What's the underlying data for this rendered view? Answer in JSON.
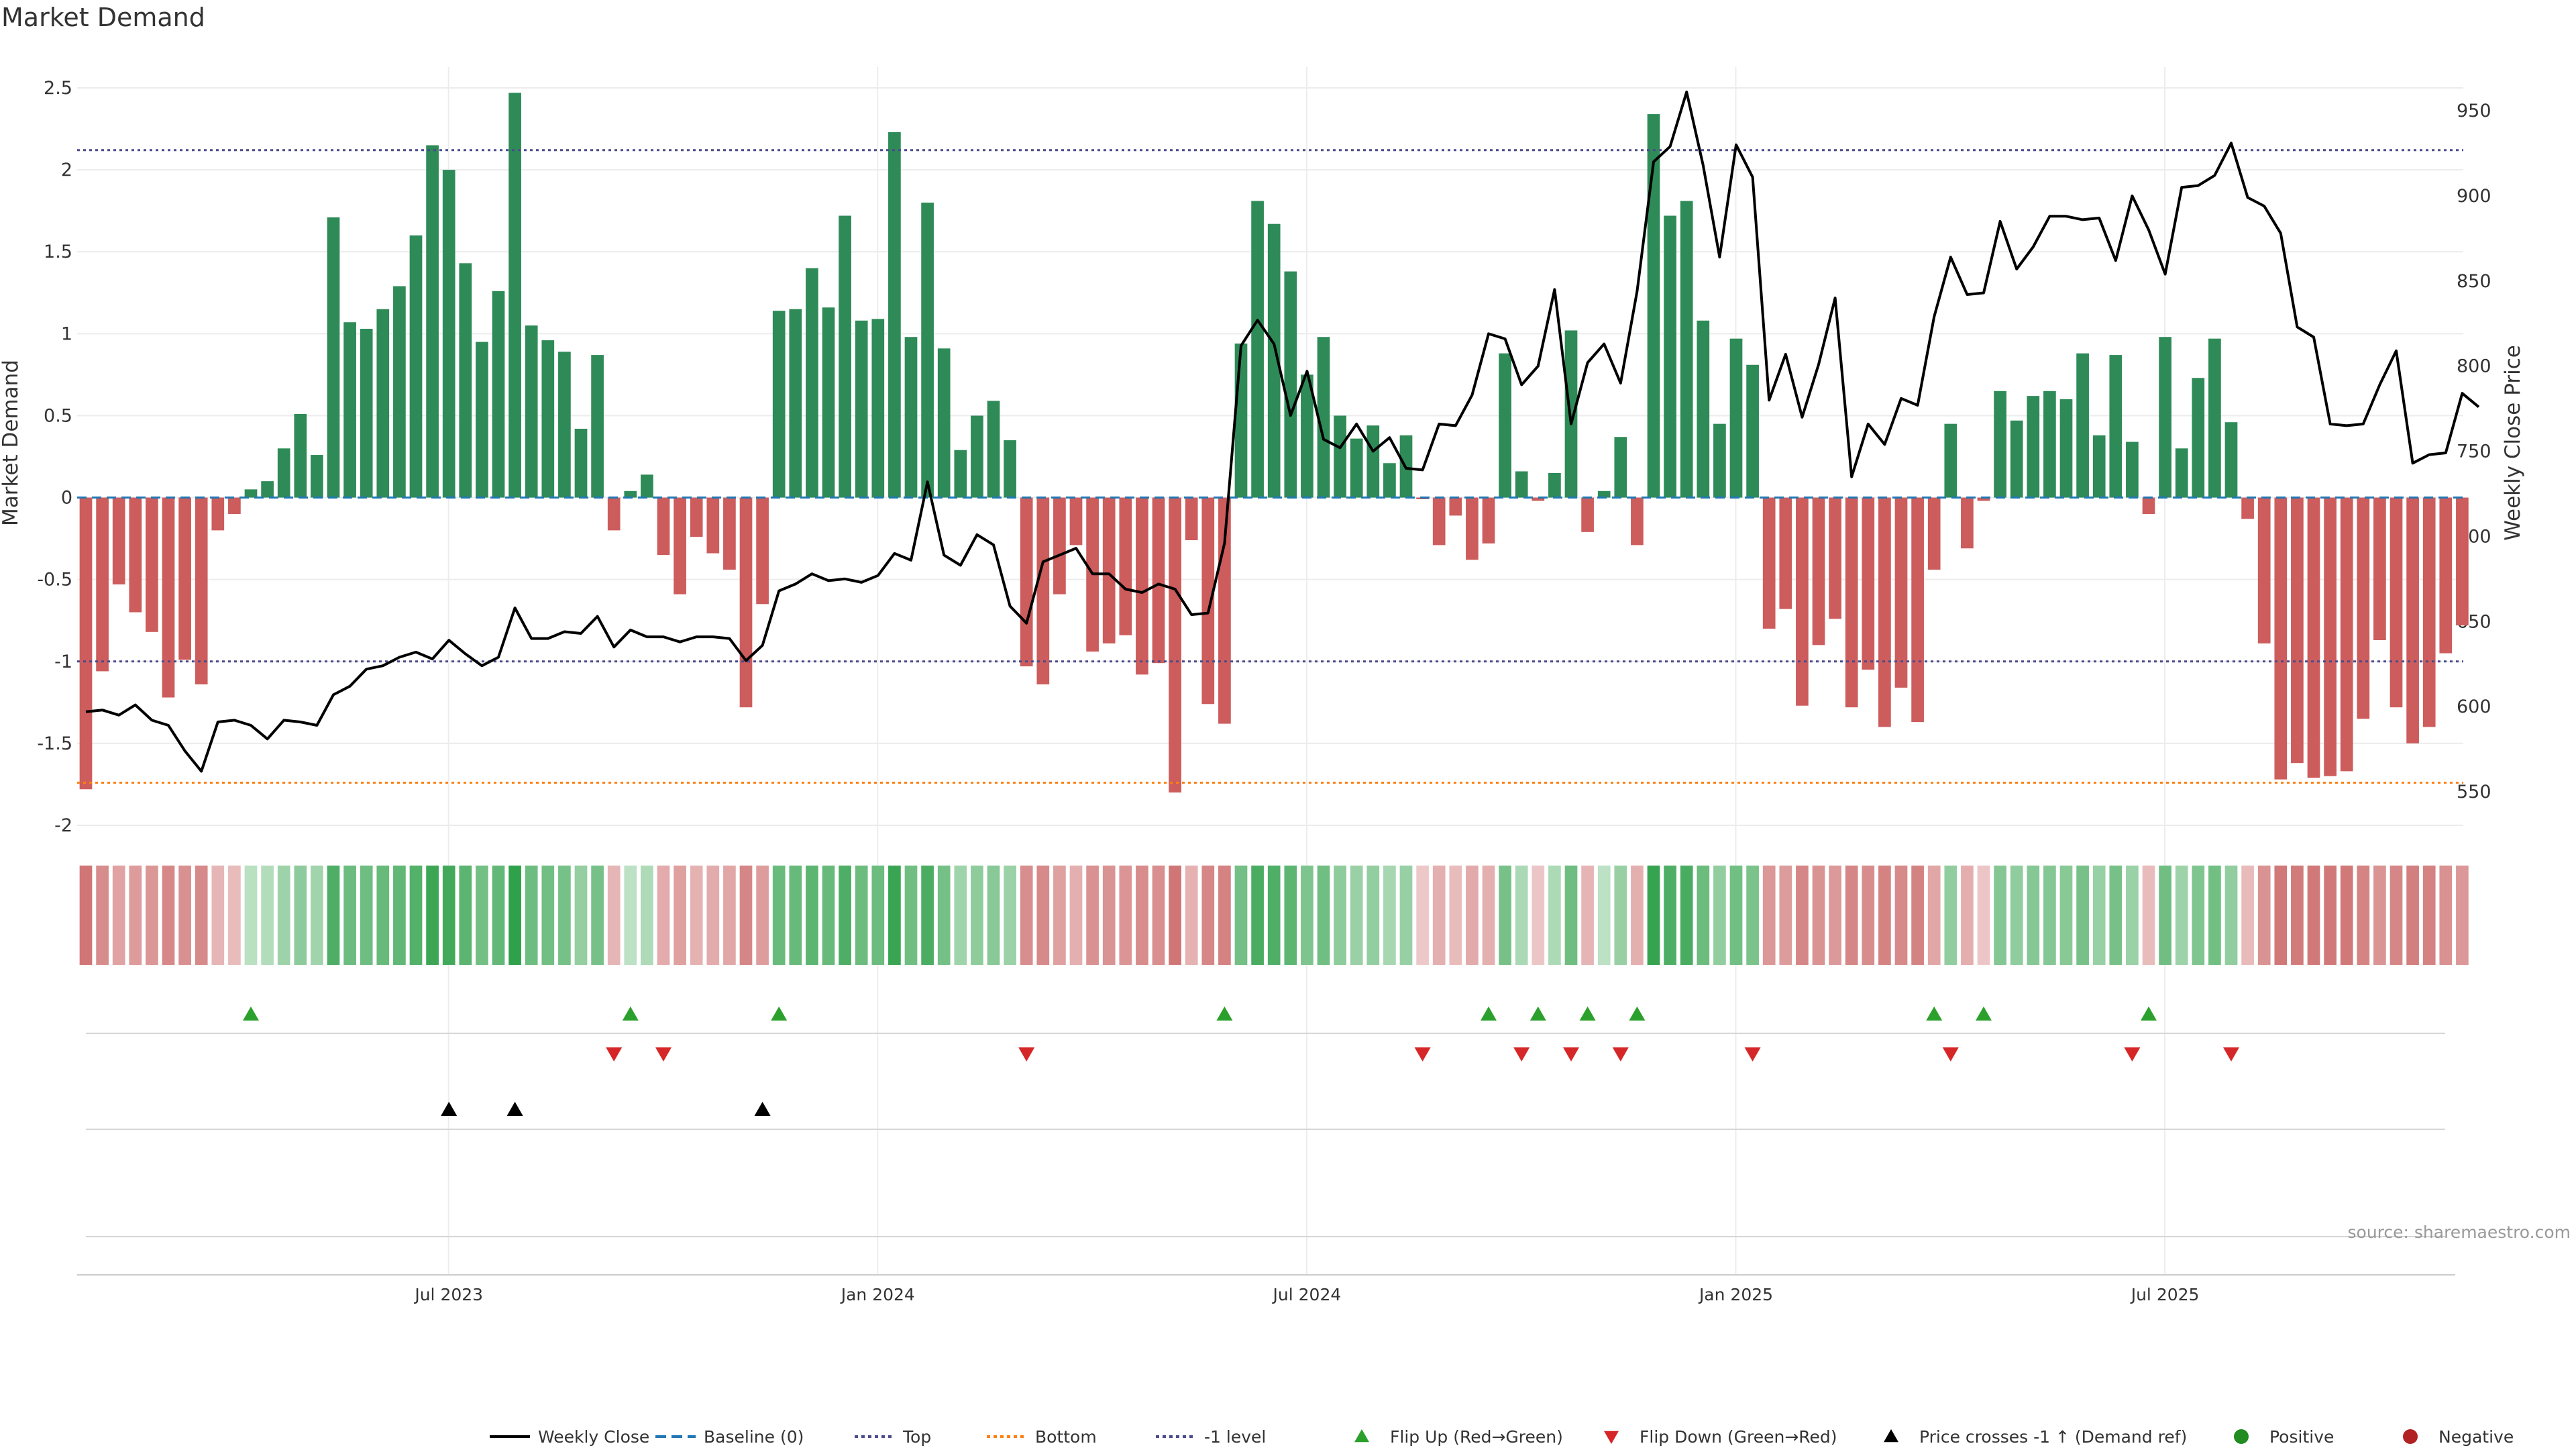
{
  "title": "Market Demand",
  "source": "source: sharemaestro.com",
  "colors": {
    "positive": "#2e8b57",
    "negative": "#cd5c5c",
    "price": "#000000",
    "baseline": "#1f77b4",
    "top": "#4b4b8c",
    "bottom": "#ff7f0e",
    "flip_up": "#2ca02c",
    "flip_down": "#d62728",
    "cross": "#000000"
  },
  "chart_data": {
    "type": "bar",
    "title": "Market Demand",
    "ylabel": "Market Demand",
    "y2label": "Weekly Close Price",
    "ylim": [
      -2.0,
      2.5
    ],
    "y2lim": [
      550,
      950
    ],
    "yticks": [
      "2.5",
      "2",
      "1.5",
      "1",
      "0.5",
      "0",
      "-0.5",
      "-1",
      "-1.5",
      "-2"
    ],
    "y2ticks": [
      "950",
      "900",
      "850",
      "800",
      "750",
      "700",
      "650",
      "600",
      "550"
    ],
    "xticks": [
      {
        "label": "Jul 2023",
        "week": 22
      },
      {
        "label": "Jan 2024",
        "week": 48
      },
      {
        "label": "Jul 2024",
        "week": 74
      },
      {
        "label": "Jan 2025",
        "week": 100
      },
      {
        "label": "Jul 2025",
        "week": 126
      }
    ],
    "levels": {
      "top": 2.12,
      "bottom": -1.74,
      "minus_one": -1.0,
      "baseline": 0
    },
    "demand": [
      -1.78,
      -1.06,
      -0.53,
      -0.7,
      -0.82,
      -1.22,
      -0.99,
      -1.14,
      -0.2,
      -0.1,
      0.05,
      0.1,
      0.3,
      0.51,
      0.26,
      1.71,
      1.07,
      1.03,
      1.15,
      1.29,
      1.6,
      2.15,
      2.0,
      1.43,
      0.95,
      1.26,
      2.47,
      1.05,
      0.96,
      0.89,
      0.42,
      0.87,
      -0.2,
      0.04,
      0.14,
      -0.35,
      -0.59,
      -0.24,
      -0.34,
      -0.44,
      -1.28,
      -0.65,
      1.14,
      1.15,
      1.4,
      1.16,
      1.72,
      1.08,
      1.09,
      2.23,
      0.98,
      1.8,
      0.91,
      0.29,
      0.5,
      0.59,
      0.35,
      -1.03,
      -1.14,
      -0.59,
      -0.29,
      -0.94,
      -0.89,
      -0.84,
      -1.08,
      -1.01,
      -1.8,
      -0.26,
      -1.26,
      -1.38,
      0.94,
      1.81,
      1.67,
      1.38,
      0.75,
      0.98,
      0.5,
      0.36,
      0.44,
      0.21,
      0.38,
      -0.01,
      -0.29,
      -0.11,
      -0.38,
      -0.28,
      0.88,
      0.16,
      -0.02,
      0.15,
      1.02,
      -0.21,
      0.04,
      0.37,
      -0.29,
      2.34,
      1.72,
      1.81,
      1.08,
      0.45,
      0.97,
      0.81,
      -0.8,
      -0.68,
      -1.27,
      -0.9,
      -0.74,
      -1.28,
      -1.05,
      -1.4,
      -1.16,
      -1.37,
      -0.44,
      0.45,
      -0.31,
      -0.02,
      0.65,
      0.47,
      0.62,
      0.65,
      0.6,
      0.88,
      0.38,
      0.87,
      0.34,
      -0.1,
      0.98,
      0.3,
      0.73,
      0.97,
      0.46,
      -0.13,
      -0.89,
      -1.72,
      -1.62,
      -1.71,
      -1.7,
      -1.67,
      -1.35,
      -0.87,
      -1.28,
      -1.5,
      -1.4,
      -0.95,
      -0.78
    ],
    "weekly_close": [
      597,
      598,
      595,
      601,
      592,
      589,
      574,
      562,
      591,
      592,
      589,
      581,
      592,
      591,
      589,
      607,
      612,
      622,
      624,
      629,
      632,
      628,
      639,
      631,
      624,
      629,
      658,
      640,
      640,
      644,
      643,
      653,
      635,
      645,
      641,
      641,
      638,
      641,
      641,
      640,
      627,
      636,
      668,
      672,
      678,
      674,
      675,
      673,
      677,
      690,
      686,
      732,
      689,
      683,
      701,
      695,
      659,
      649,
      685,
      689,
      693,
      678,
      678,
      669,
      667,
      672,
      669,
      654,
      655,
      696,
      812,
      827,
      813,
      771,
      797,
      757,
      752,
      766,
      750,
      758,
      740,
      739,
      766,
      765,
      783,
      819,
      816,
      789,
      800,
      845,
      766,
      802,
      813,
      790,
      844,
      920,
      929,
      961,
      918,
      864,
      930,
      911,
      780,
      807,
      770,
      801,
      840,
      735,
      766,
      754,
      781,
      777,
      829,
      864,
      842,
      843,
      885,
      857,
      870,
      888,
      888,
      886,
      887,
      862,
      900,
      880,
      854,
      905,
      906,
      912,
      931,
      899,
      894,
      878,
      823,
      817,
      766,
      765,
      766,
      789,
      809,
      743,
      748,
      749,
      784,
      776
    ],
    "heat_strip": "color per week follows demand sign and magnitude",
    "flip_up_weeks": [
      10,
      33,
      42,
      69,
      85,
      88,
      91,
      94,
      112,
      115,
      125
    ],
    "flip_down_weeks": [
      32,
      35,
      57,
      81,
      87,
      90,
      93,
      101,
      113,
      124,
      130
    ],
    "price_cross_weeks": [
      22,
      26,
      41
    ]
  },
  "legend": [
    {
      "label": "Weekly Close",
      "kind": "line"
    },
    {
      "label": "Baseline (0)",
      "kind": "dash"
    },
    {
      "label": "Top",
      "kind": "dot-top"
    },
    {
      "label": "Bottom",
      "kind": "dot-bottom"
    },
    {
      "label": "-1 level",
      "kind": "dot-minus"
    },
    {
      "label": "Flip Up (Red→Green)",
      "kind": "tri-up-green"
    },
    {
      "label": "Flip Down (Green→Red)",
      "kind": "tri-down-red"
    },
    {
      "label": "Price crosses -1 ↑ (Demand ref)",
      "kind": "tri-up-black"
    },
    {
      "label": "Positive",
      "kind": "dot-green"
    },
    {
      "label": "Negative",
      "kind": "dot-red"
    }
  ]
}
